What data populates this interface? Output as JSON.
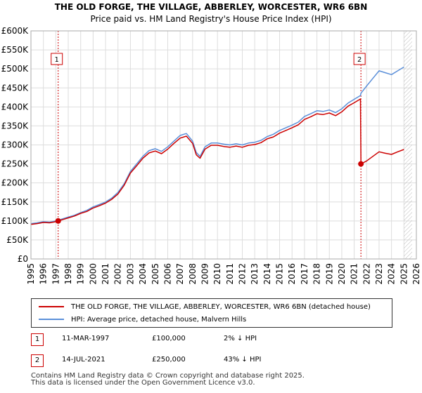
{
  "title": "THE OLD FORGE, THE VILLAGE, ABBERLEY, WORCESTER, WR6 6BN",
  "subtitle": "Price paid vs. HM Land Registry's House Price Index (HPI)",
  "colors": {
    "property": "#cc0000",
    "hpi": "#5b8fd9",
    "marker_line": "#cc0000",
    "grid": "#dddddd"
  },
  "chart_data": {
    "type": "line",
    "title": "THE OLD FORGE, THE VILLAGE, ABBERLEY, WORCESTER, WR6 6BN",
    "xlabel": "",
    "ylabel": "",
    "xlim": [
      1995,
      2026
    ],
    "ylim": [
      0,
      600000
    ],
    "y_ticks": [
      {
        "value": 0,
        "label": "£0"
      },
      {
        "value": 50000,
        "label": "£50K"
      },
      {
        "value": 100000,
        "label": "£100K"
      },
      {
        "value": 150000,
        "label": "£150K"
      },
      {
        "value": 200000,
        "label": "£200K"
      },
      {
        "value": 250000,
        "label": "£250K"
      },
      {
        "value": 300000,
        "label": "£300K"
      },
      {
        "value": 350000,
        "label": "£350K"
      },
      {
        "value": 400000,
        "label": "£400K"
      },
      {
        "value": 450000,
        "label": "£450K"
      },
      {
        "value": 500000,
        "label": "£500K"
      },
      {
        "value": 550000,
        "label": "£550K"
      },
      {
        "value": 600000,
        "label": "£600K"
      }
    ],
    "x_ticks": [
      "1995",
      "1996",
      "1997",
      "1998",
      "1999",
      "2000",
      "2001",
      "2002",
      "2003",
      "2004",
      "2005",
      "2006",
      "2007",
      "2008",
      "2009",
      "2010",
      "2011",
      "2012",
      "2013",
      "2014",
      "2015",
      "2016",
      "2017",
      "2018",
      "2019",
      "2020",
      "2021",
      "2022",
      "2023",
      "2024",
      "2025",
      "2026"
    ],
    "grid": true,
    "future_shading_from": 2025.0,
    "series": [
      {
        "name": "HPI: Average price, detached house, Malvern Hills",
        "x": [
          1995.0,
          1995.5,
          1996.0,
          1996.5,
          1997.0,
          1997.2,
          1997.5,
          1998.0,
          1998.5,
          1999.0,
          1999.5,
          2000.0,
          2000.5,
          2001.0,
          2001.5,
          2002.0,
          2002.5,
          2003.0,
          2003.5,
          2004.0,
          2004.5,
          2005.0,
          2005.5,
          2006.0,
          2006.5,
          2007.0,
          2007.5,
          2008.0,
          2008.3,
          2008.6,
          2009.0,
          2009.5,
          2010.0,
          2010.5,
          2011.0,
          2011.5,
          2012.0,
          2012.5,
          2013.0,
          2013.5,
          2014.0,
          2014.5,
          2015.0,
          2015.5,
          2016.0,
          2016.5,
          2017.0,
          2017.5,
          2018.0,
          2018.5,
          2019.0,
          2019.5,
          2020.0,
          2020.5,
          2021.0,
          2021.5,
          2021.54,
          2022.0,
          2022.5,
          2023.0,
          2023.5,
          2024.0,
          2024.5,
          2025.0
        ],
        "values": [
          93000,
          95000,
          98000,
          97000,
          100000,
          102000,
          105000,
          110000,
          115000,
          122000,
          128000,
          137000,
          143000,
          150000,
          160000,
          175000,
          198000,
          230000,
          250000,
          270000,
          285000,
          290000,
          283000,
          295000,
          310000,
          325000,
          330000,
          310000,
          280000,
          270000,
          295000,
          305000,
          305000,
          302000,
          300000,
          303000,
          300000,
          305000,
          307000,
          312000,
          322000,
          328000,
          338000,
          345000,
          352000,
          360000,
          375000,
          382000,
          390000,
          388000,
          392000,
          385000,
          395000,
          410000,
          420000,
          430000,
          436000,
          455000,
          475000,
          495000,
          490000,
          485000,
          495000,
          505000
        ]
      },
      {
        "name": "THE OLD FORGE, THE VILLAGE, ABBERLEY, WORCESTER, WR6 6BN (detached house)",
        "x": [
          1995.0,
          1995.5,
          1996.0,
          1996.5,
          1997.0,
          1997.2,
          1997.5,
          1998.0,
          1998.5,
          1999.0,
          1999.5,
          2000.0,
          2000.5,
          2001.0,
          2001.5,
          2002.0,
          2002.5,
          2003.0,
          2003.5,
          2004.0,
          2004.5,
          2005.0,
          2005.5,
          2006.0,
          2006.5,
          2007.0,
          2007.5,
          2008.0,
          2008.3,
          2008.6,
          2009.0,
          2009.5,
          2010.0,
          2010.5,
          2011.0,
          2011.5,
          2012.0,
          2012.5,
          2013.0,
          2013.5,
          2014.0,
          2014.5,
          2015.0,
          2015.5,
          2016.0,
          2016.5,
          2017.0,
          2017.5,
          2018.0,
          2018.5,
          2019.0,
          2019.5,
          2020.0,
          2020.5,
          2021.0,
          2021.5,
          2021.54,
          2022.0,
          2022.5,
          2023.0,
          2023.5,
          2024.0,
          2024.5,
          2025.0
        ],
        "values": [
          91000,
          93000,
          96000,
          95000,
          98000,
          100000,
          103000,
          108000,
          113000,
          120000,
          125000,
          134000,
          140000,
          147000,
          157000,
          171000,
          194000,
          226000,
          245000,
          265000,
          279000,
          284000,
          277000,
          289000,
          304000,
          318000,
          323000,
          304000,
          274000,
          265000,
          289000,
          299000,
          299000,
          296000,
          294000,
          297000,
          294000,
          299000,
          301000,
          306000,
          316000,
          321000,
          331000,
          338000,
          345000,
          353000,
          367000,
          374000,
          382000,
          380000,
          384000,
          377000,
          387000,
          402000,
          411000,
          421000,
          250000,
          258000,
          270000,
          282000,
          278000,
          275000,
          282000,
          288000
        ]
      }
    ],
    "markers": [
      {
        "label": "1",
        "x": 1997.19,
        "value": 100000
      },
      {
        "label": "2",
        "x": 2021.54,
        "value": 250000
      }
    ]
  },
  "legend": {
    "property_label": "THE OLD FORGE, THE VILLAGE, ABBERLEY, WORCESTER, WR6 6BN (detached house)",
    "hpi_label": "HPI: Average price, detached house, Malvern Hills"
  },
  "sales": [
    {
      "num": "1",
      "date": "11-MAR-1997",
      "price": "£100,000",
      "hpi": "2% ↓ HPI"
    },
    {
      "num": "2",
      "date": "14-JUL-2021",
      "price": "£250,000",
      "hpi": "43% ↓ HPI"
    }
  ],
  "footer": {
    "line1": "Contains HM Land Registry data © Crown copyright and database right 2025.",
    "line2": "This data is licensed under the Open Government Licence v3.0."
  }
}
